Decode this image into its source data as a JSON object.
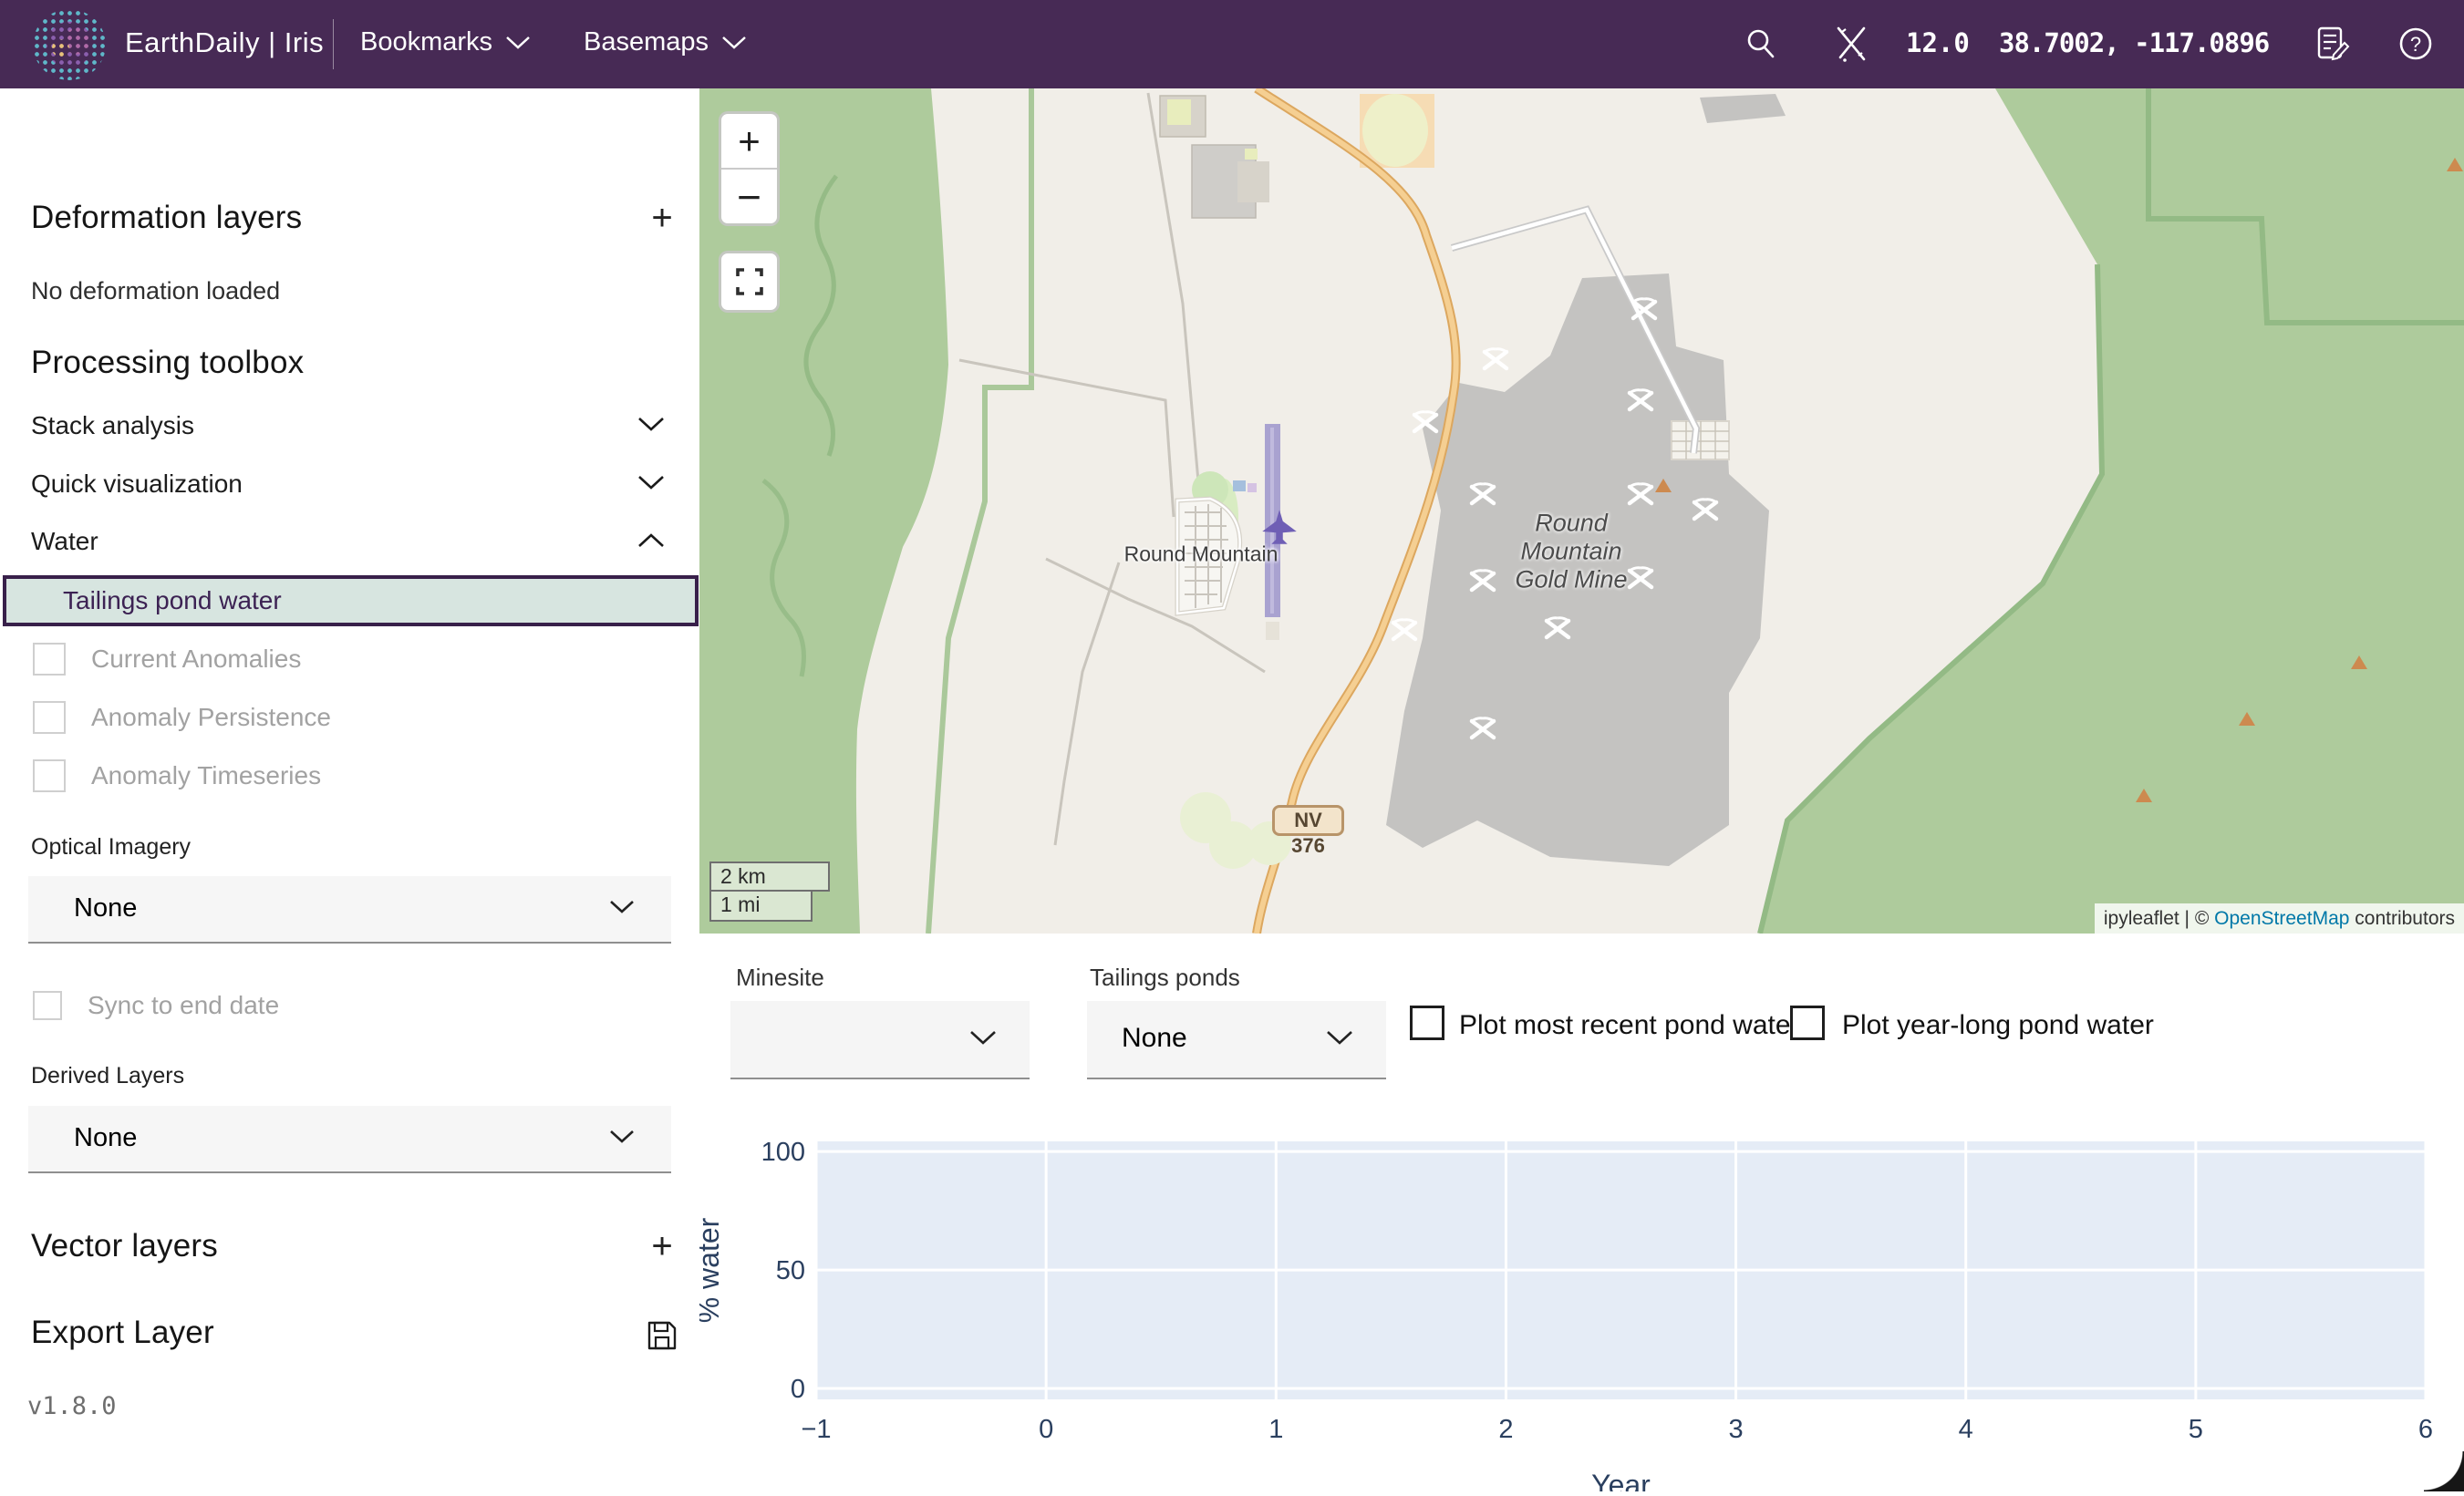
{
  "topbar": {
    "app_title": "EarthDaily | Iris",
    "menus": [
      {
        "label": "Bookmarks"
      },
      {
        "label": "Basemaps"
      }
    ],
    "zoom_level": "12.0",
    "coordinates": "38.7002, -117.0896"
  },
  "sidebar": {
    "deformation": {
      "title": "Deformation layers",
      "empty_message": "No deformation loaded"
    },
    "toolbox": {
      "title": "Processing toolbox",
      "sections": [
        {
          "label": "Stack analysis"
        },
        {
          "label": "Quick visualization"
        },
        {
          "label": "Water"
        }
      ],
      "selected_tool": "Tailings pond water",
      "water_options": [
        {
          "label": "Current Anomalies"
        },
        {
          "label": "Anomaly Persistence"
        },
        {
          "label": "Anomaly Timeseries"
        }
      ],
      "optical_imagery": {
        "label": "Optical Imagery",
        "value": "None"
      },
      "sync_checkbox": {
        "label": "Sync to end date"
      },
      "derived_layers": {
        "label": "Derived Layers",
        "value": "None"
      }
    },
    "vector": {
      "title": "Vector layers"
    },
    "export": {
      "title": "Export Layer"
    },
    "version": "v1.8.0"
  },
  "map": {
    "town_label": "Round Mountain",
    "mine_label_lines": [
      "Round",
      "Mountain",
      "Gold Mine"
    ],
    "road_shield": "NV 376",
    "zoom_in": "+",
    "zoom_out": "−",
    "scale": {
      "metric": "2 km",
      "imperial": "1 mi"
    },
    "attribution": {
      "prefix": "ipyleaflet | © ",
      "link_text": "OpenStreetMap",
      "suffix": " contributors"
    }
  },
  "bottom_panel": {
    "minesite": {
      "label": "Minesite",
      "value": ""
    },
    "tailings": {
      "label": "Tailings ponds",
      "value": "None"
    },
    "checkboxes": [
      {
        "label": "Plot most recent pond water",
        "checked": false
      },
      {
        "label": "Plot year-long pond water",
        "checked": false
      }
    ]
  },
  "chart_data": {
    "type": "line",
    "title": "",
    "xlabel": "Year",
    "ylabel": "% water",
    "x_range": [
      -1,
      6
    ],
    "y_range": [
      -4.6,
      104.3
    ],
    "xticks": [
      -1,
      0,
      1,
      2,
      3,
      4,
      5,
      6
    ],
    "yticks": [
      0,
      50,
      100
    ],
    "series": [],
    "grid": true,
    "legend": false,
    "plot_bg_color": "#e5ecf6",
    "grid_color": "#ffffff",
    "axis_label_color": "#2a3f5f"
  }
}
